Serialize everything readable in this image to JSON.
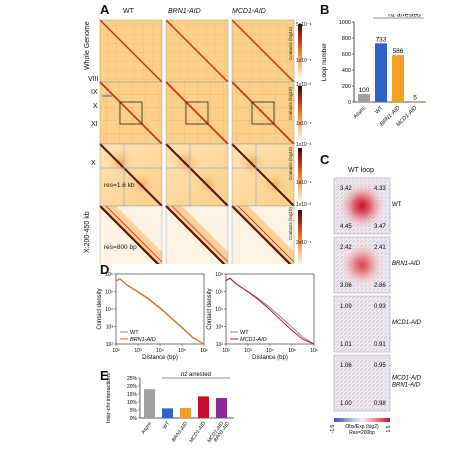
{
  "panels": {
    "A": {
      "letter": "A",
      "columns": [
        "WT",
        "BRN1-AID",
        "MCD1-AID"
      ],
      "rows": [
        {
          "label": "Whole Genome",
          "scale_top": "5x10⁻³",
          "scale_mid": "Contacts (log10)",
          "scale_bottom": "1x10⁻⁵",
          "note": "",
          "ticks": []
        },
        {
          "label": "",
          "scale_top": "1x10⁻²",
          "scale_mid": "Contacts (log10)",
          "scale_bottom": "1x10⁻⁴",
          "note": "",
          "ticks": [
            "VIII",
            "IX",
            "X",
            "XI"
          ]
        },
        {
          "label": "X",
          "scale_top": "1x10⁻²",
          "scale_mid": "Contacts (log10)",
          "scale_bottom": "1x10⁻⁴",
          "note": "res=1.6 kb",
          "ticks": []
        },
        {
          "label": "X:200-450 kb",
          "scale_top": "1x10⁻²",
          "scale_mid": "Contacts (log10)",
          "scale_bottom": "2x10⁻⁴",
          "note": "res=800 bp",
          "ticks": []
        }
      ],
      "heat_colors": {
        "background": "#fbd08a",
        "mid": "#f29a3a",
        "high": "#b8300c",
        "max": "#5a1204"
      }
    },
    "B": {
      "letter": "B",
      "chart_data": {
        "type": "bar",
        "title": "",
        "ylabel": "Loop number",
        "xlabel": "",
        "group_label": "nz arrested",
        "categories": [
          "Async",
          "WT",
          "BRN1-AID",
          "MCD1-AID"
        ],
        "values": [
          100,
          733,
          586,
          5
        ],
        "value_labels": [
          "100",
          "733",
          "586",
          "5"
        ],
        "colors": [
          "#a0a0a0",
          "#2e62c9",
          "#f0a121",
          "#f0a121"
        ],
        "ylim": [
          0,
          1000
        ],
        "yticks": [
          "0",
          "200",
          "400",
          "600",
          "800",
          "1000"
        ]
      }
    },
    "C": {
      "letter": "C",
      "title": "WT loop",
      "rows": [
        {
          "label": "WT",
          "values": [
            "3.42",
            "4.33",
            "4.45",
            "3.47"
          ],
          "signal": "strong"
        },
        {
          "label": "BRN1-AID",
          "values": [
            "2.42",
            "2.41",
            "3.06",
            "2.86"
          ],
          "signal": "medium"
        },
        {
          "label": "MCD1-AID",
          "values": [
            "1.09",
            "0.93",
            "1.01",
            "0.91"
          ],
          "signal": "none"
        },
        {
          "label": "MCD1-AID BRN1-AID",
          "values": [
            "1.06",
            "0.95",
            "1.00",
            "0.98"
          ],
          "signal": "none"
        }
      ],
      "colorbar": {
        "min": "-1.5",
        "max": "1.5",
        "caption1": "Obs/Exp (log2)",
        "caption2": "Res=200bp",
        "low_color": "#3b52a8",
        "high_color": "#c8102e"
      }
    },
    "D": {
      "letter": "D",
      "chart_data": [
        {
          "type": "line",
          "ylabel": "Contact density",
          "xlabel": "Distance (bp)",
          "xscale": "log",
          "yscale": "log",
          "xticks": [
            "10²",
            "10³",
            "10⁴",
            "10⁵",
            "10⁶"
          ],
          "yticks": [
            "10⁶",
            "10⁵",
            "10⁴",
            "10³",
            "10²"
          ],
          "xlim": [
            100,
            1000000
          ],
          "ylim": [
            100,
            1000000
          ],
          "legend": "bottom-left",
          "series": [
            {
              "name": "WT",
              "color": "#888888",
              "x": [
                100,
                150,
                300,
                1000,
                3000,
                10000,
                30000,
                100000,
                300000,
                1000000
              ],
              "y": [
                400000,
                550000,
                250000,
                100000,
                40000,
                12000,
                3500,
                900,
                250,
                100
              ]
            },
            {
              "name": "BRN1-AID",
              "color": "#e8741e",
              "x": [
                100,
                150,
                300,
                1000,
                3000,
                10000,
                30000,
                100000,
                300000,
                1000000
              ],
              "y": [
                380000,
                520000,
                235000,
                92000,
                36000,
                11000,
                3200,
                820,
                230,
                100
              ]
            }
          ]
        },
        {
          "type": "line",
          "ylabel": "Contact density",
          "xlabel": "Distance (bp)",
          "xscale": "log",
          "yscale": "log",
          "xticks": [
            "10²",
            "10³",
            "10⁴",
            "10⁵",
            "10⁶"
          ],
          "yticks": [
            "10⁶",
            "10⁵",
            "10⁴",
            "10³",
            "10²"
          ],
          "xlim": [
            100,
            1000000
          ],
          "ylim": [
            100,
            1000000
          ],
          "legend": "bottom-left",
          "series": [
            {
              "name": "WT",
              "color": "#888888",
              "x": [
                100,
                150,
                300,
                1000,
                3000,
                10000,
                30000,
                100000,
                300000,
                1000000
              ],
              "y": [
                400000,
                550000,
                250000,
                100000,
                40000,
                12000,
                3500,
                900,
                250,
                100
              ]
            },
            {
              "name": "MCD1-AID",
              "color": "#c4123c",
              "x": [
                100,
                150,
                300,
                1000,
                3000,
                10000,
                30000,
                100000,
                300000,
                1000000
              ],
              "y": [
                420000,
                580000,
                270000,
                95000,
                34000,
                9000,
                2400,
                600,
                190,
                100
              ]
            }
          ]
        }
      ]
    },
    "E": {
      "letter": "E",
      "chart_data": {
        "type": "bar",
        "ylabel": "Inter-chr interactions",
        "xlabel": "",
        "group_label": "nz arrested",
        "categories": [
          "Async",
          "WT",
          "BRN1-AID",
          "MCD1-AID",
          "MCD1-AID BRN1-AID"
        ],
        "values": [
          18,
          6,
          6.3,
          13.5,
          12.5
        ],
        "colors": [
          "#a0a0a0",
          "#2e62c9",
          "#f0a121",
          "#c8102e",
          "#8a2a9e"
        ],
        "ylim": [
          0,
          25
        ],
        "yticks": [
          "0%",
          "5%",
          "10%",
          "15%",
          "20%",
          "25%"
        ]
      }
    }
  }
}
